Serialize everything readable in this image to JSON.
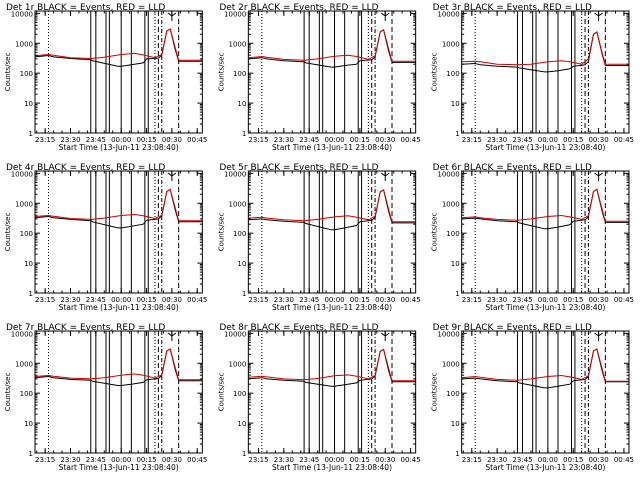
{
  "figure": {
    "background": "#ffffff",
    "title_template": "Det {n}r  BLACK = Events, RED = LLD",
    "xlabel": "Start Time (13-Jun-11 23:08:40)",
    "ylabel": "Counts/sec"
  },
  "chart_data": [
    {
      "type": "line",
      "title": "Det 1r  BLACK = Events, RED = LLD",
      "xlabel": "Start Time (13-Jun-11 23:08:40)",
      "ylabel": "Counts/sec",
      "y_scale": "log",
      "ylim": [
        1,
        12000
      ],
      "xlim": [
        "23:09",
        "00:48"
      ],
      "x_ticks": [
        "23:15",
        "23:30",
        "23:45",
        "00:00",
        "00:15",
        "00:30",
        "00:45"
      ],
      "y_ticks": [
        "1",
        "10",
        "100",
        "1000",
        "10000"
      ],
      "series": [
        {
          "color": "#000000",
          "x": [
            "23:09",
            "23:17",
            "23:20",
            "23:30",
            "23:42",
            "23:43",
            "23:58",
            "00:00",
            "00:06",
            "00:13",
            "00:15",
            "00:22",
            "00:24",
            "00:27",
            "00:29",
            "00:32",
            "00:34",
            "00:48"
          ],
          "y": [
            350,
            390,
            350,
            310,
            280,
            260,
            170,
            170,
            190,
            220,
            300,
            320,
            400,
            2600,
            3000,
            600,
            250,
            250
          ]
        },
        {
          "color": "#d00000",
          "x": [
            "23:09",
            "23:17",
            "23:20",
            "23:30",
            "23:42",
            "23:50",
            "00:00",
            "00:08",
            "00:13",
            "00:20",
            "00:24",
            "00:27",
            "00:29",
            "00:32",
            "00:34",
            "00:48"
          ],
          "y": [
            380,
            420,
            400,
            330,
            310,
            340,
            420,
            460,
            410,
            330,
            420,
            2600,
            3000,
            700,
            270,
            270
          ]
        }
      ]
    },
    {
      "type": "line",
      "title": "Det 2r  BLACK = Events, RED = LLD",
      "xlabel": "Start Time (13-Jun-11 23:08:40)",
      "ylabel": "Counts/sec",
      "y_scale": "log",
      "ylim": [
        1,
        12000
      ],
      "xlim": [
        "23:09",
        "00:48"
      ],
      "x_ticks": [
        "23:15",
        "23:30",
        "23:45",
        "00:00",
        "00:15",
        "00:30",
        "00:45"
      ],
      "y_ticks": [
        "1",
        "10",
        "100",
        "1000",
        "10000"
      ],
      "series": [
        {
          "color": "#000000",
          "x": [
            "23:09",
            "23:17",
            "23:20",
            "23:30",
            "23:42",
            "23:43",
            "23:58",
            "00:00",
            "00:06",
            "00:13",
            "00:15",
            "00:22",
            "00:24",
            "00:27",
            "00:29",
            "00:32",
            "00:34",
            "00:48"
          ],
          "y": [
            300,
            330,
            300,
            260,
            240,
            220,
            160,
            160,
            180,
            200,
            260,
            280,
            350,
            2400,
            2800,
            550,
            230,
            230
          ]
        },
        {
          "color": "#d00000",
          "x": [
            "23:09",
            "23:17",
            "23:20",
            "23:30",
            "23:42",
            "23:50",
            "00:00",
            "00:08",
            "00:13",
            "00:20",
            "00:24",
            "00:27",
            "00:29",
            "00:32",
            "00:34",
            "00:48"
          ],
          "y": [
            330,
            360,
            340,
            290,
            270,
            300,
            370,
            400,
            360,
            290,
            380,
            2400,
            2800,
            650,
            250,
            250
          ]
        }
      ]
    },
    {
      "type": "line",
      "title": "Det 3r  BLACK = Events, RED = LLD",
      "xlabel": "Start Time (13-Jun-11 23:08:40)",
      "ylabel": "Counts/sec",
      "y_scale": "log",
      "ylim": [
        1,
        12000
      ],
      "xlim": [
        "23:09",
        "00:48"
      ],
      "x_ticks": [
        "23:15",
        "23:30",
        "23:45",
        "00:00",
        "00:15",
        "00:30",
        "00:45"
      ],
      "y_ticks": [
        "1",
        "10",
        "100",
        "1000",
        "10000"
      ],
      "series": [
        {
          "color": "#000000",
          "x": [
            "23:09",
            "23:17",
            "23:20",
            "23:30",
            "23:42",
            "23:43",
            "23:58",
            "00:00",
            "00:06",
            "00:13",
            "00:15",
            "00:22",
            "00:24",
            "00:27",
            "00:29",
            "00:32",
            "00:34",
            "00:48"
          ],
          "y": [
            200,
            210,
            190,
            170,
            160,
            150,
            110,
            110,
            120,
            140,
            170,
            190,
            250,
            2000,
            2400,
            450,
            180,
            180
          ]
        },
        {
          "color": "#d00000",
          "x": [
            "23:09",
            "23:17",
            "23:20",
            "23:30",
            "23:42",
            "23:50",
            "00:00",
            "00:08",
            "00:13",
            "00:20",
            "00:24",
            "00:27",
            "00:29",
            "00:32",
            "00:34",
            "00:48"
          ],
          "y": [
            240,
            250,
            240,
            200,
            190,
            200,
            240,
            260,
            240,
            200,
            300,
            2000,
            2400,
            500,
            200,
            200
          ]
        }
      ]
    },
    {
      "type": "line",
      "title": "Det 4r  BLACK = Events, RED = LLD",
      "xlabel": "Start Time (13-Jun-11 23:08:40)",
      "ylabel": "Counts/sec",
      "y_scale": "log",
      "ylim": [
        1,
        12000
      ],
      "xlim": [
        "23:09",
        "00:48"
      ],
      "x_ticks": [
        "23:15",
        "23:30",
        "23:45",
        "00:00",
        "00:15",
        "00:30",
        "00:45"
      ],
      "y_ticks": [
        "1",
        "10",
        "100",
        "1000",
        "10000"
      ],
      "series": [
        {
          "color": "#000000",
          "x": [
            "23:09",
            "23:17",
            "23:20",
            "23:30",
            "23:42",
            "23:43",
            "23:58",
            "00:00",
            "00:06",
            "00:13",
            "00:15",
            "00:22",
            "00:24",
            "00:27",
            "00:29",
            "00:32",
            "00:34",
            "00:48"
          ],
          "y": [
            330,
            360,
            330,
            290,
            260,
            240,
            150,
            150,
            170,
            200,
            270,
            300,
            380,
            2500,
            2900,
            580,
            240,
            240
          ]
        },
        {
          "color": "#d00000",
          "x": [
            "23:09",
            "23:17",
            "23:20",
            "23:30",
            "23:42",
            "23:50",
            "00:00",
            "00:08",
            "00:13",
            "00:20",
            "00:24",
            "00:27",
            "00:29",
            "00:32",
            "00:34",
            "00:48"
          ],
          "y": [
            360,
            390,
            370,
            310,
            290,
            320,
            390,
            420,
            380,
            310,
            400,
            2500,
            2900,
            680,
            260,
            260
          ]
        }
      ]
    },
    {
      "type": "line",
      "title": "Det 5r  BLACK = Events, RED = LLD",
      "xlabel": "Start Time (13-Jun-11 23:08:40)",
      "ylabel": "Counts/sec",
      "y_scale": "log",
      "ylim": [
        1,
        12000
      ],
      "xlim": [
        "23:09",
        "00:48"
      ],
      "x_ticks": [
        "23:15",
        "23:30",
        "23:45",
        "00:00",
        "00:15",
        "00:30",
        "00:45"
      ],
      "y_ticks": [
        "1",
        "10",
        "100",
        "1000",
        "10000"
      ],
      "series": [
        {
          "color": "#000000",
          "x": [
            "23:09",
            "23:17",
            "23:20",
            "23:30",
            "23:42",
            "23:43",
            "23:58",
            "00:00",
            "00:06",
            "00:13",
            "00:15",
            "00:22",
            "00:24",
            "00:27",
            "00:29",
            "00:32",
            "00:34",
            "00:48"
          ],
          "y": [
            280,
            300,
            280,
            250,
            230,
            210,
            130,
            130,
            150,
            180,
            240,
            270,
            340,
            2400,
            2800,
            540,
            220,
            220
          ]
        },
        {
          "color": "#d00000",
          "x": [
            "23:09",
            "23:17",
            "23:20",
            "23:30",
            "23:42",
            "23:50",
            "00:00",
            "00:08",
            "00:13",
            "00:20",
            "00:24",
            "00:27",
            "00:29",
            "00:32",
            "00:34",
            "00:48"
          ],
          "y": [
            320,
            340,
            320,
            280,
            260,
            290,
            350,
            380,
            340,
            280,
            370,
            2400,
            2800,
            640,
            240,
            240
          ]
        }
      ]
    },
    {
      "type": "line",
      "title": "Det 6r  BLACK = Events, RED = LLD",
      "xlabel": "Start Time (13-Jun-11 23:08:40)",
      "ylabel": "Counts/sec",
      "y_scale": "log",
      "ylim": [
        1,
        12000
      ],
      "xlim": [
        "23:09",
        "00:48"
      ],
      "x_ticks": [
        "23:15",
        "23:30",
        "23:45",
        "00:00",
        "00:15",
        "00:30",
        "00:45"
      ],
      "y_ticks": [
        "1",
        "10",
        "100",
        "1000",
        "10000"
      ],
      "series": [
        {
          "color": "#000000",
          "x": [
            "23:09",
            "23:17",
            "23:20",
            "23:30",
            "23:42",
            "23:43",
            "23:58",
            "00:00",
            "00:06",
            "00:13",
            "00:15",
            "00:22",
            "00:24",
            "00:27",
            "00:29",
            "00:32",
            "00:34",
            "00:48"
          ],
          "y": [
            300,
            320,
            300,
            260,
            240,
            220,
            140,
            140,
            160,
            190,
            250,
            280,
            350,
            2500,
            2900,
            560,
            230,
            230
          ]
        },
        {
          "color": "#d00000",
          "x": [
            "23:09",
            "23:17",
            "23:20",
            "23:30",
            "23:42",
            "23:50",
            "00:00",
            "00:08",
            "00:13",
            "00:20",
            "00:24",
            "00:27",
            "00:29",
            "00:32",
            "00:34",
            "00:48"
          ],
          "y": [
            330,
            350,
            330,
            290,
            270,
            300,
            360,
            390,
            350,
            290,
            380,
            2500,
            2900,
            660,
            250,
            250
          ]
        }
      ]
    },
    {
      "type": "line",
      "title": "Det 7r  BLACK = Events, RED = LLD",
      "xlabel": "Start Time (13-Jun-11 23:08:40)",
      "ylabel": "Counts/sec",
      "y_scale": "log",
      "ylim": [
        1,
        12000
      ],
      "xlim": [
        "23:09",
        "00:48"
      ],
      "x_ticks": [
        "23:15",
        "23:30",
        "23:45",
        "00:00",
        "00:15",
        "00:30",
        "00:45"
      ],
      "y_ticks": [
        "1",
        "10",
        "100",
        "1000",
        "10000"
      ],
      "series": [
        {
          "color": "#000000",
          "x": [
            "23:09",
            "23:17",
            "23:20",
            "23:30",
            "23:42",
            "23:43",
            "23:58",
            "00:00",
            "00:06",
            "00:13",
            "00:15",
            "00:22",
            "00:24",
            "00:27",
            "00:29",
            "00:32",
            "00:34",
            "00:48"
          ],
          "y": [
            330,
            360,
            330,
            290,
            270,
            250,
            180,
            180,
            200,
            230,
            280,
            310,
            390,
            2600,
            3000,
            600,
            260,
            260
          ]
        },
        {
          "color": "#d00000",
          "x": [
            "23:09",
            "23:17",
            "23:20",
            "23:30",
            "23:42",
            "23:50",
            "00:00",
            "00:08",
            "00:13",
            "00:20",
            "00:24",
            "00:27",
            "00:29",
            "00:32",
            "00:34",
            "00:48"
          ],
          "y": [
            360,
            390,
            370,
            320,
            300,
            330,
            400,
            440,
            400,
            320,
            410,
            2600,
            3000,
            700,
            280,
            280
          ]
        }
      ]
    },
    {
      "type": "line",
      "title": "Det 8r  BLACK = Events, RED = LLD",
      "xlabel": "Start Time (13-Jun-11 23:08:40)",
      "ylabel": "Counts/sec",
      "y_scale": "log",
      "ylim": [
        1,
        12000
      ],
      "xlim": [
        "23:09",
        "00:48"
      ],
      "x_ticks": [
        "23:15",
        "23:30",
        "23:45",
        "00:00",
        "00:15",
        "00:30",
        "00:45"
      ],
      "y_ticks": [
        "1",
        "10",
        "100",
        "1000",
        "10000"
      ],
      "series": [
        {
          "color": "#000000",
          "x": [
            "23:09",
            "23:17",
            "23:20",
            "23:30",
            "23:42",
            "23:43",
            "23:58",
            "00:00",
            "00:06",
            "00:13",
            "00:15",
            "00:22",
            "00:24",
            "00:27",
            "00:29",
            "00:32",
            "00:34",
            "00:48"
          ],
          "y": [
            300,
            330,
            300,
            270,
            250,
            230,
            170,
            170,
            190,
            220,
            270,
            300,
            370,
            2500,
            2900,
            570,
            240,
            240
          ]
        },
        {
          "color": "#d00000",
          "x": [
            "23:09",
            "23:17",
            "23:20",
            "23:30",
            "23:42",
            "23:50",
            "00:00",
            "00:08",
            "00:13",
            "00:20",
            "00:24",
            "00:27",
            "00:29",
            "00:32",
            "00:34",
            "00:48"
          ],
          "y": [
            340,
            370,
            350,
            300,
            280,
            310,
            380,
            410,
            370,
            300,
            390,
            2500,
            2900,
            680,
            260,
            260
          ]
        }
      ]
    },
    {
      "type": "line",
      "title": "Det 9r  BLACK = Events, RED = LLD",
      "xlabel": "Start Time (13-Jun-11 23:08:40)",
      "ylabel": "Counts/sec",
      "y_scale": "log",
      "ylim": [
        1,
        12000
      ],
      "xlim": [
        "23:09",
        "00:48"
      ],
      "x_ticks": [
        "23:15",
        "23:30",
        "23:45",
        "00:00",
        "00:15",
        "00:30",
        "00:45"
      ],
      "y_ticks": [
        "1",
        "10",
        "100",
        "1000",
        "10000"
      ],
      "series": [
        {
          "color": "#000000",
          "x": [
            "23:09",
            "23:17",
            "23:20",
            "23:30",
            "23:42",
            "23:43",
            "23:58",
            "00:00",
            "00:06",
            "00:13",
            "00:15",
            "00:22",
            "00:24",
            "00:27",
            "00:29",
            "00:32",
            "00:34",
            "00:48"
          ],
          "y": [
            300,
            320,
            300,
            260,
            240,
            220,
            150,
            150,
            170,
            200,
            260,
            290,
            360,
            2600,
            3000,
            580,
            240,
            240
          ]
        },
        {
          "color": "#d00000",
          "x": [
            "23:09",
            "23:17",
            "23:20",
            "23:30",
            "23:42",
            "23:50",
            "00:00",
            "00:08",
            "00:13",
            "00:20",
            "00:24",
            "00:27",
            "00:29",
            "00:32",
            "00:34",
            "00:48"
          ],
          "y": [
            330,
            360,
            340,
            290,
            270,
            300,
            360,
            390,
            350,
            290,
            380,
            2600,
            3000,
            680,
            250,
            250
          ]
        }
      ]
    }
  ],
  "markers": {
    "dotted_times": [
      "23:17",
      "00:20"
    ],
    "solid_times": [
      "23:42",
      "23:45",
      "23:51",
      "23:53",
      "00:00",
      "00:06",
      "00:14",
      "00:16"
    ],
    "dashed_times": [
      "00:22",
      "00:34"
    ],
    "dashdot_times": [
      "00:24"
    ]
  }
}
